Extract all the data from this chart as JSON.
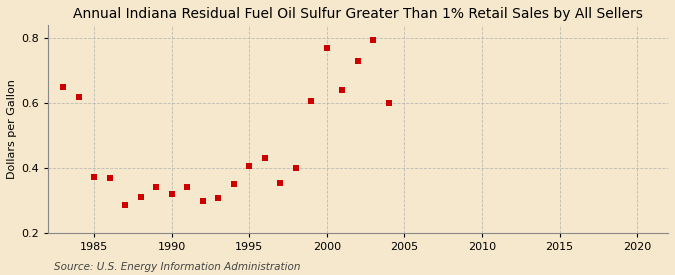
{
  "title": "Annual Indiana Residual Fuel Oil Sulfur Greater Than 1% Retail Sales by All Sellers",
  "ylabel": "Dollars per Gallon",
  "source": "Source: U.S. Energy Information Administration",
  "background_color": "#f5e8cc",
  "plot_background_color": "#f5e8cc",
  "marker_color": "#cc0000",
  "marker": "s",
  "marker_size": 4,
  "xlim": [
    1982,
    2022
  ],
  "ylim": [
    0.2,
    0.84
  ],
  "xticks": [
    1985,
    1990,
    1995,
    2000,
    2005,
    2010,
    2015,
    2020
  ],
  "yticks": [
    0.2,
    0.4,
    0.6,
    0.8
  ],
  "x": [
    1983,
    1984,
    1985,
    1986,
    1987,
    1988,
    1989,
    1990,
    1991,
    1992,
    1993,
    1994,
    1995,
    1996,
    1997,
    1998,
    1999,
    2000,
    2001,
    2002,
    2003,
    2004
  ],
  "y": [
    0.648,
    0.618,
    0.37,
    0.368,
    0.285,
    0.308,
    0.34,
    0.32,
    0.34,
    0.298,
    0.305,
    0.35,
    0.405,
    0.43,
    0.352,
    0.4,
    0.604,
    0.77,
    0.64,
    0.729,
    0.792,
    0.6
  ],
  "grid_color": "#b0b0b0",
  "title_fontsize": 10,
  "label_fontsize": 8,
  "tick_fontsize": 8,
  "source_fontsize": 7.5
}
